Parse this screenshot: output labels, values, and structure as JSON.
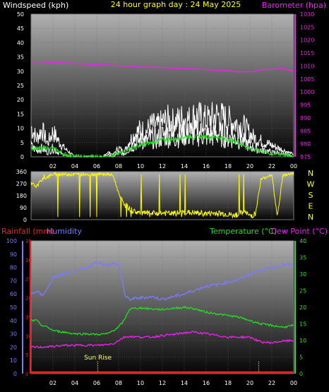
{
  "colors": {
    "background": "#000000",
    "panel_top": "#a8a8a8",
    "panel_bottom": "#050505",
    "wind_speed": "#ffffff",
    "wind_avg": "#22dd22",
    "barometer": "#ee22ee",
    "direction": "#ffff00",
    "rainfall": "#ee2222",
    "humidity": "#7a7aff",
    "temperature": "#22dd22",
    "dew_point": "#ee22ee",
    "title": "#ffff00",
    "wind_label": "#ffffff",
    "barometer_label": "#ee22ee",
    "compass_label": "#ffff00",
    "sunrise": "#ffff66"
  },
  "chart_data": [
    {
      "id": "wind",
      "type": "line",
      "title": "24 hour graph day : 24 May 2025",
      "left_axis_label": "Windspeed (kph)",
      "right_axis_label": "Barometer (hpa)",
      "x_ticks": [
        "02",
        "04",
        "06",
        "08",
        "10",
        "12",
        "14",
        "16",
        "18",
        "20",
        "22",
        "00"
      ],
      "left_ticks": [
        "0",
        "5",
        "10",
        "15",
        "20",
        "25",
        "30",
        "35",
        "40",
        "45",
        "50"
      ],
      "right_ticks": [
        "975",
        "980",
        "985",
        "990",
        "995",
        "1000",
        "1005",
        "1010",
        "1015",
        "1020",
        "1025",
        "1030"
      ],
      "ylim_left": [
        0,
        50
      ],
      "ylim_right": [
        975,
        1030
      ],
      "xlim": [
        0,
        24
      ],
      "series": [
        {
          "role": "wind_gust",
          "color": "#ffffff",
          "x": [
            0,
            0.5,
            1,
            1.5,
            2,
            2.5,
            3,
            3.5,
            4,
            4.5,
            5,
            5.5,
            6,
            6.5,
            7,
            7.5,
            8,
            8.5,
            9,
            9.5,
            10,
            10.5,
            11,
            11.5,
            12,
            12.5,
            13,
            13.5,
            14,
            14.5,
            15,
            15.5,
            16,
            16.5,
            17,
            17.5,
            18,
            18.5,
            19,
            19.5,
            20,
            20.5,
            21,
            21.5,
            22,
            22.5,
            23,
            23.5,
            24
          ],
          "y": [
            13,
            8,
            12,
            6,
            11,
            7,
            4,
            2,
            0,
            0,
            0,
            0,
            0,
            0,
            2,
            1,
            4,
            2,
            7,
            10,
            12,
            11,
            14,
            13,
            15,
            16,
            15,
            16,
            17,
            16,
            18,
            17,
            16,
            17,
            18,
            17,
            16,
            15,
            14,
            13,
            10,
            8,
            7,
            6,
            5,
            4,
            3,
            2,
            1
          ]
        },
        {
          "role": "wind_speed",
          "color": "#ffffff",
          "x": [
            0,
            0.5,
            1,
            1.5,
            2,
            2.5,
            3,
            3.5,
            4,
            4.5,
            5,
            5.5,
            6,
            6.5,
            7,
            7.5,
            8,
            8.5,
            9,
            9.5,
            10,
            10.5,
            11,
            11.5,
            12,
            12.5,
            13,
            13.5,
            14,
            14.5,
            15,
            15.5,
            16,
            16.5,
            17,
            17.5,
            18,
            18.5,
            19,
            19.5,
            20,
            20.5,
            21,
            21.5,
            22,
            22.5,
            23,
            23.5,
            24
          ],
          "y": [
            5,
            3,
            4,
            2,
            4,
            2,
            1,
            0,
            0,
            0,
            0,
            0,
            0,
            0,
            1,
            0,
            2,
            1,
            4,
            6,
            8,
            7,
            9,
            8,
            10,
            10,
            9,
            10,
            11,
            10,
            11,
            11,
            10,
            10,
            11,
            10,
            9,
            9,
            8,
            7,
            5,
            4,
            3,
            3,
            2,
            2,
            1,
            1,
            0
          ]
        },
        {
          "role": "wind_average",
          "color": "#22dd22",
          "x": [
            0,
            1,
            2,
            3,
            4,
            5,
            6,
            7,
            8,
            9,
            10,
            11,
            12,
            13,
            14,
            15,
            16,
            17,
            18,
            19,
            20,
            21,
            22,
            23,
            24
          ],
          "y": [
            3,
            3,
            3,
            1,
            0,
            0,
            0,
            0,
            1,
            3,
            4,
            5,
            6,
            6,
            7,
            7,
            7,
            7,
            6,
            5,
            3,
            2,
            1,
            1,
            0
          ]
        },
        {
          "role": "barometer",
          "color": "#ee22ee",
          "axis": "right",
          "x": [
            0,
            2,
            4,
            6,
            8,
            10,
            12,
            14,
            16,
            18,
            19,
            20,
            21,
            22,
            23,
            24
          ],
          "y": [
            1011.8,
            1011.4,
            1011,
            1010.6,
            1010.2,
            1009.6,
            1009.4,
            1009,
            1008.6,
            1008.2,
            1007.8,
            1007.8,
            1008.6,
            1008.7,
            1009,
            1008.0
          ]
        }
      ]
    },
    {
      "id": "direction",
      "type": "line",
      "x_ticks": [
        "02",
        "04",
        "06",
        "08",
        "10",
        "12",
        "14",
        "16",
        "18",
        "20",
        "22",
        "00"
      ],
      "left_ticks": [
        "0",
        "90",
        "180",
        "270",
        "360"
      ],
      "right_labels": [
        "N",
        "W",
        "S",
        "E",
        "N"
      ],
      "ylim": [
        0,
        360
      ],
      "xlim": [
        0,
        24
      ],
      "series": [
        {
          "role": "wind_direction",
          "color": "#ffff00",
          "x": [
            0,
            0.5,
            1,
            1.5,
            2,
            3,
            4,
            5,
            6,
            7,
            7.5,
            8,
            8.5,
            9,
            9.5,
            10,
            11,
            12,
            13,
            14,
            15,
            16,
            17,
            18,
            18.5,
            19,
            19.5,
            20,
            20.5,
            21,
            21.5,
            22,
            22.5,
            23,
            23.5,
            24
          ],
          "y": [
            270,
            250,
            300,
            320,
            340,
            340,
            340,
            340,
            340,
            340,
            330,
            200,
            120,
            80,
            60,
            50,
            45,
            50,
            45,
            55,
            50,
            45,
            50,
            40,
            30,
            45,
            55,
            30,
            40,
            300,
            320,
            340,
            20,
            330,
            340,
            350
          ]
        }
      ]
    },
    {
      "id": "temperature",
      "type": "line",
      "left_axis_label_rain": "Rainfall (mm)",
      "left_axis_label_hum": "Humidity",
      "right_axis_label_temp": "Temperature (°C)",
      "right_axis_label_dew": "Dew Point (°C)",
      "x_ticks": [
        "02",
        "04",
        "06",
        "08",
        "10",
        "12",
        "14",
        "16",
        "18",
        "20",
        "22",
        "00"
      ],
      "humidity_ticks": [
        "0",
        "10",
        "20",
        "30",
        "40",
        "50",
        "60",
        "70",
        "80",
        "90",
        "100"
      ],
      "rain_ticks": [
        "0",
        "5",
        "10",
        "15",
        "20",
        "25",
        "30",
        "35"
      ],
      "temp_ticks": [
        "0",
        "5",
        "10",
        "15",
        "20",
        "25",
        "30",
        "35",
        "40"
      ],
      "ylim_temp": [
        0,
        40
      ],
      "ylim_humidity": [
        0,
        100
      ],
      "ylim_rain": [
        0,
        35
      ],
      "xlim": [
        0,
        24
      ],
      "annotations": [
        {
          "label": "Sun Rise",
          "x": 6.1
        }
      ],
      "series": [
        {
          "role": "humidity",
          "color": "#7a7aff",
          "axis": "humidity",
          "x": [
            0,
            0.5,
            1,
            1.5,
            2,
            3,
            4,
            5,
            5.5,
            6,
            6.5,
            7,
            7.5,
            8,
            8.3,
            8.6,
            9,
            10,
            11,
            12,
            13,
            14,
            15,
            16,
            17,
            18,
            19,
            20,
            21,
            22,
            23,
            24
          ],
          "y": [
            60,
            62,
            59,
            64,
            72,
            75,
            77,
            79,
            82,
            84,
            83,
            82,
            83,
            82,
            72,
            58,
            56,
            57,
            58,
            56,
            58,
            60,
            63,
            66,
            67,
            69,
            71,
            75,
            78,
            80,
            82,
            82
          ]
        },
        {
          "role": "temperature",
          "color": "#22dd22",
          "axis": "temp",
          "x": [
            0,
            0.5,
            1,
            1.5,
            2,
            3,
            4,
            5,
            6,
            7,
            7.5,
            8,
            8.5,
            9,
            10,
            11,
            12,
            13,
            14,
            15,
            16,
            17,
            18,
            19,
            20,
            21,
            22,
            23,
            24
          ],
          "y": [
            16,
            16,
            14.5,
            14,
            13,
            12.5,
            12,
            12,
            11.8,
            12,
            13,
            14,
            16,
            19.5,
            19.8,
            19.5,
            19.3,
            19.7,
            20,
            19.5,
            18.5,
            18,
            17.5,
            17,
            16,
            15,
            14.5,
            14,
            14.5
          ]
        },
        {
          "role": "dew_point",
          "color": "#ee22ee",
          "axis": "temp",
          "x": [
            0,
            1,
            2,
            3,
            4,
            5,
            6,
            7,
            7.5,
            8,
            8.5,
            9,
            10,
            11,
            12,
            13,
            14,
            15,
            16,
            17,
            18,
            19,
            20,
            21,
            22,
            23,
            24
          ],
          "y": [
            8,
            8,
            8.2,
            8.5,
            8.5,
            8.6,
            8.5,
            8.8,
            9,
            10,
            11,
            11.2,
            11,
            11,
            11.5,
            11.8,
            12.3,
            12.5,
            12,
            11.5,
            11,
            11,
            11,
            9.5,
            9.3,
            9.8,
            10
          ]
        },
        {
          "role": "rainfall",
          "color": "#ee2222",
          "axis": "rain",
          "x": [
            0,
            24
          ],
          "y": [
            0,
            0
          ]
        }
      ]
    }
  ]
}
